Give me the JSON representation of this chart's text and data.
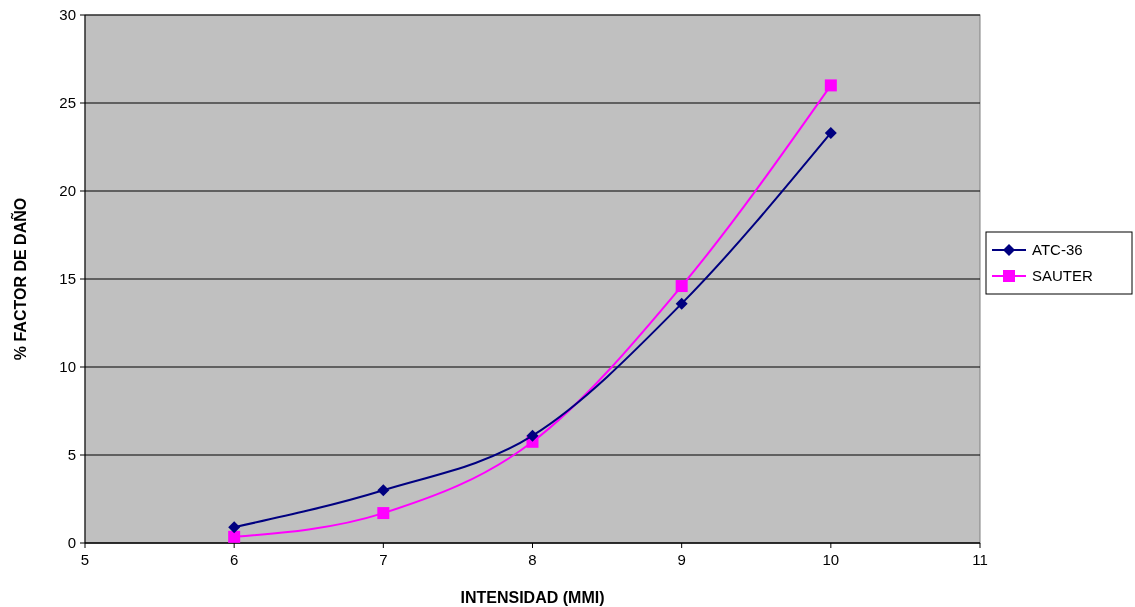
{
  "chart_data": {
    "type": "line",
    "xlabel": "INTENSIDAD (MMI)",
    "ylabel": "% FACTOR DE DAÑO",
    "x": [
      6,
      7,
      8,
      9,
      10
    ],
    "series": [
      {
        "name": "ATC-36",
        "color": "#000080",
        "marker": "diamond",
        "values": [
          0.9,
          3.0,
          6.1,
          13.6,
          23.3
        ]
      },
      {
        "name": "SAUTER",
        "color": "#ff00ff",
        "marker": "square",
        "values": [
          0.35,
          1.7,
          5.75,
          14.6,
          26.0
        ]
      }
    ],
    "xlim": [
      5,
      11
    ],
    "xticks": [
      5,
      6,
      7,
      8,
      9,
      10,
      11
    ],
    "ylim": [
      0,
      30
    ],
    "yticks": [
      0,
      5,
      10,
      15,
      20,
      25,
      30
    ],
    "grid": "y",
    "legend": "right"
  }
}
